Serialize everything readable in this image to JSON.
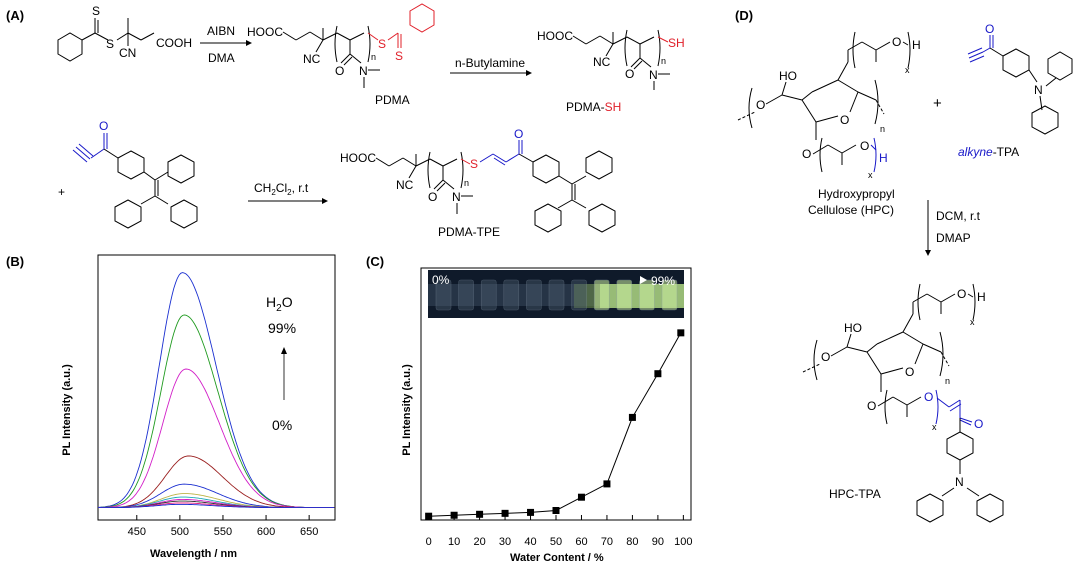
{
  "panels": {
    "a": "(A)",
    "b": "(B)",
    "c": "(C)",
    "d": "(D)"
  },
  "scheme_a": {
    "reagent1_top": "AIBN",
    "reagent1_bottom": "DMA",
    "reagent2": "n-Butylamine",
    "reagent3_prefix": "CH",
    "reagent3_sub1": "2",
    "reagent3_mid": "Cl",
    "reagent3_sub2": "2",
    "reagent3_suffix": ", r.t",
    "plus": "+",
    "start": {
      "s_top": "S",
      "s_mid": "S",
      "cn": "CN",
      "cooh": "COOH"
    },
    "pdma": {
      "hooc": "HOOC",
      "nc": "NC",
      "n": "n",
      "o": "O",
      "n_atom": "N",
      "s1": "S",
      "s2": "S",
      "label": "PDMA"
    },
    "pdma_sh": {
      "hooc": "HOOC",
      "nc": "NC",
      "n": "n",
      "o": "O",
      "n_atom": "N",
      "sh": "SH",
      "label_black": "PDMA-",
      "label_red": "SH"
    },
    "tpe_alkyne": {
      "o": "O"
    },
    "pdma_tpe": {
      "hooc": "HOOC",
      "nc": "NC",
      "n": "n",
      "o": "O",
      "n_atom": "N",
      "s": "S",
      "o2": "O",
      "label": "PDMA-TPE"
    }
  },
  "scheme_d": {
    "plus": "+",
    "reagent_top": "DCM, r.t",
    "reagent_bottom": "DMAP",
    "hpc": {
      "ho": "HO",
      "o_ring1": "O",
      "o_ring2": "O",
      "o_side": "O",
      "o_chain1": "O",
      "h1": "H",
      "x1": "x",
      "o_chain2": "O",
      "h2": "H",
      "x2": "x",
      "n": "n",
      "label1": "Hydroxypropyl",
      "label2": "Cellulose (HPC)"
    },
    "alkyne_tpa": {
      "o": "O",
      "n": "N",
      "label_italic": "alkyne",
      "label_rest": "-TPA"
    },
    "hpc_tpa": {
      "ho": "HO",
      "o_ring1": "O",
      "o_ring2": "O",
      "o_side": "O",
      "o_chain1": "O",
      "h1": "H",
      "x1": "x",
      "o_chain2": "O",
      "x2": "x",
      "o_ketone": "O",
      "n": "n",
      "n_atom": "N",
      "label": "HPC-TPA"
    }
  },
  "colors": {
    "red": "#e0202a",
    "blue": "#1818c8",
    "green_glow": "#b7e08a"
  },
  "chart_data": [
    {
      "type": "line",
      "panel": "(B)",
      "xlabel": "Wavelength / nm",
      "ylabel": "PL Intensity (a.u.)",
      "xlim": [
        405,
        680
      ],
      "ylim": [
        0,
        1.0
      ],
      "xticks": [
        450,
        500,
        550,
        600,
        650
      ],
      "annotation": {
        "top": "H",
        "sub": "2",
        "o": "O",
        "high": "99%",
        "low": "0%"
      },
      "series": [
        {
          "color": "#1a2fd0",
          "peak": 503,
          "amp": 1.0
        },
        {
          "color": "#1f9a1f",
          "peak": 505,
          "amp": 0.82
        },
        {
          "color": "#d21fc8",
          "peak": 507,
          "amp": 0.59
        },
        {
          "color": "#9a1f1f",
          "peak": 510,
          "amp": 0.22
        },
        {
          "color": "#1a2fd0",
          "peak": 505,
          "amp": 0.1
        },
        {
          "color": "#bdb54a",
          "peak": 505,
          "amp": 0.06
        },
        {
          "color": "#1aa8b8",
          "peak": 503,
          "amp": 0.045
        },
        {
          "color": "#d21fc8",
          "peak": 503,
          "amp": 0.035
        },
        {
          "color": "#333333",
          "peak": 502,
          "amp": 0.028
        },
        {
          "color": "#e2208a",
          "peak": 501,
          "amp": 0.02
        },
        {
          "color": "#1a2fd0",
          "peak": 500,
          "amp": 0.014
        }
      ]
    },
    {
      "type": "line",
      "panel": "(C)",
      "xlabel": "Water Content / %",
      "ylabel": "PL Intensity (a.u.)",
      "xlim": [
        -3,
        103
      ],
      "ylim": [
        0,
        1.0
      ],
      "xticks": [
        0,
        10,
        20,
        30,
        40,
        50,
        60,
        70,
        80,
        90,
        100
      ],
      "x": [
        0,
        10,
        20,
        30,
        40,
        50,
        60,
        70,
        80,
        90,
        99
      ],
      "y": [
        0.02,
        0.025,
        0.03,
        0.035,
        0.04,
        0.05,
        0.12,
        0.19,
        0.54,
        0.77,
        0.985
      ],
      "inset": {
        "left": "0%",
        "right": "99%"
      }
    }
  ]
}
